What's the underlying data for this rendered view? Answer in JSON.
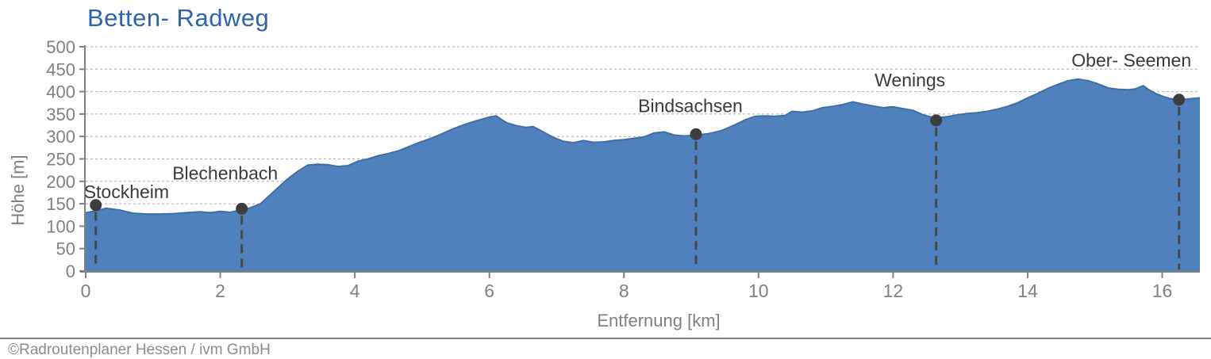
{
  "title": "Betten- Radweg",
  "footer": "©Radroutenplaner  Hessen / ivm GmbH",
  "colors": {
    "title_blue": "#2d64ad",
    "area_fill": "#4f81bd",
    "area_edge": "#3f6ea5",
    "axis_gray": "#808080",
    "gridline_gray": "#ababab",
    "marker_dark": "#3d3d3d",
    "marker_dash": "#474747",
    "station_label": "#3a3a3a",
    "footer_gray": "#8c8c8c"
  },
  "chart_data": {
    "type": "area",
    "title": "Betten- Radweg",
    "xlabel": "Entfernung [km]",
    "ylabel": "Höhe [m]",
    "xlim": [
      0,
      16.56
    ],
    "ylim": [
      0,
      500
    ],
    "x_ticks": [
      0,
      2,
      4,
      6,
      8,
      10,
      12,
      14,
      16
    ],
    "y_ticks": [
      0,
      50,
      100,
      150,
      200,
      250,
      300,
      350,
      400,
      450,
      500
    ],
    "grid": "horizontal-dashed",
    "legend": "none",
    "profile": [
      [
        0.0,
        130
      ],
      [
        0.15,
        134
      ],
      [
        0.3,
        140
      ],
      [
        0.5,
        136
      ],
      [
        0.7,
        129
      ],
      [
        0.9,
        127
      ],
      [
        1.1,
        127
      ],
      [
        1.3,
        128
      ],
      [
        1.5,
        130
      ],
      [
        1.7,
        132
      ],
      [
        1.85,
        130
      ],
      [
        2.0,
        133
      ],
      [
        2.15,
        131
      ],
      [
        2.3,
        136
      ],
      [
        2.45,
        141
      ],
      [
        2.6,
        150
      ],
      [
        2.8,
        178
      ],
      [
        3.0,
        205
      ],
      [
        3.15,
        222
      ],
      [
        3.3,
        236
      ],
      [
        3.45,
        238
      ],
      [
        3.6,
        237
      ],
      [
        3.75,
        233
      ],
      [
        3.9,
        235
      ],
      [
        4.05,
        245
      ],
      [
        4.2,
        250
      ],
      [
        4.35,
        257
      ],
      [
        4.5,
        262
      ],
      [
        4.65,
        268
      ],
      [
        4.8,
        277
      ],
      [
        4.95,
        286
      ],
      [
        5.1,
        294
      ],
      [
        5.25,
        303
      ],
      [
        5.4,
        313
      ],
      [
        5.55,
        322
      ],
      [
        5.7,
        330
      ],
      [
        5.85,
        337
      ],
      [
        6.0,
        343
      ],
      [
        6.1,
        346
      ],
      [
        6.25,
        331
      ],
      [
        6.4,
        324
      ],
      [
        6.55,
        320
      ],
      [
        6.65,
        322
      ],
      [
        6.8,
        310
      ],
      [
        6.95,
        298
      ],
      [
        7.1,
        289
      ],
      [
        7.25,
        286
      ],
      [
        7.4,
        291
      ],
      [
        7.55,
        287
      ],
      [
        7.7,
        288
      ],
      [
        7.85,
        291
      ],
      [
        8.0,
        293
      ],
      [
        8.15,
        296
      ],
      [
        8.3,
        299
      ],
      [
        8.45,
        308
      ],
      [
        8.6,
        310
      ],
      [
        8.75,
        303
      ],
      [
        8.9,
        301
      ],
      [
        9.07,
        303
      ],
      [
        9.25,
        306
      ],
      [
        9.45,
        313
      ],
      [
        9.65,
        326
      ],
      [
        9.8,
        337
      ],
      [
        9.95,
        345
      ],
      [
        10.1,
        346
      ],
      [
        10.25,
        345
      ],
      [
        10.4,
        347
      ],
      [
        10.5,
        356
      ],
      [
        10.65,
        354
      ],
      [
        10.8,
        357
      ],
      [
        10.95,
        364
      ],
      [
        11.1,
        367
      ],
      [
        11.25,
        371
      ],
      [
        11.4,
        377
      ],
      [
        11.55,
        372
      ],
      [
        11.7,
        368
      ],
      [
        11.85,
        364
      ],
      [
        12.0,
        366
      ],
      [
        12.15,
        362
      ],
      [
        12.3,
        358
      ],
      [
        12.45,
        348
      ],
      [
        12.62,
        341
      ],
      [
        12.8,
        344
      ],
      [
        12.95,
        348
      ],
      [
        13.1,
        351
      ],
      [
        13.25,
        353
      ],
      [
        13.4,
        356
      ],
      [
        13.55,
        361
      ],
      [
        13.7,
        367
      ],
      [
        13.85,
        375
      ],
      [
        14.0,
        386
      ],
      [
        14.15,
        396
      ],
      [
        14.3,
        407
      ],
      [
        14.45,
        416
      ],
      [
        14.6,
        424
      ],
      [
        14.75,
        428
      ],
      [
        14.9,
        424
      ],
      [
        15.05,
        417
      ],
      [
        15.2,
        408
      ],
      [
        15.35,
        405
      ],
      [
        15.5,
        404
      ],
      [
        15.6,
        406
      ],
      [
        15.72,
        413
      ],
      [
        15.8,
        404
      ],
      [
        15.9,
        396
      ],
      [
        16.0,
        390
      ],
      [
        16.1,
        385
      ],
      [
        16.25,
        381
      ],
      [
        16.4,
        384
      ],
      [
        16.56,
        386
      ]
    ],
    "waypoints": [
      {
        "name": "Stockheim",
        "km": 0.15,
        "elevation": 147
      },
      {
        "name": "Blechenbach",
        "km": 2.32,
        "elevation": 139
      },
      {
        "name": "Bindsachsen",
        "km": 9.07,
        "elevation": 305
      },
      {
        "name": "Wenings",
        "km": 12.64,
        "elevation": 336
      },
      {
        "name": "Ober- Seemen",
        "km": 16.25,
        "elevation": 382
      }
    ]
  }
}
